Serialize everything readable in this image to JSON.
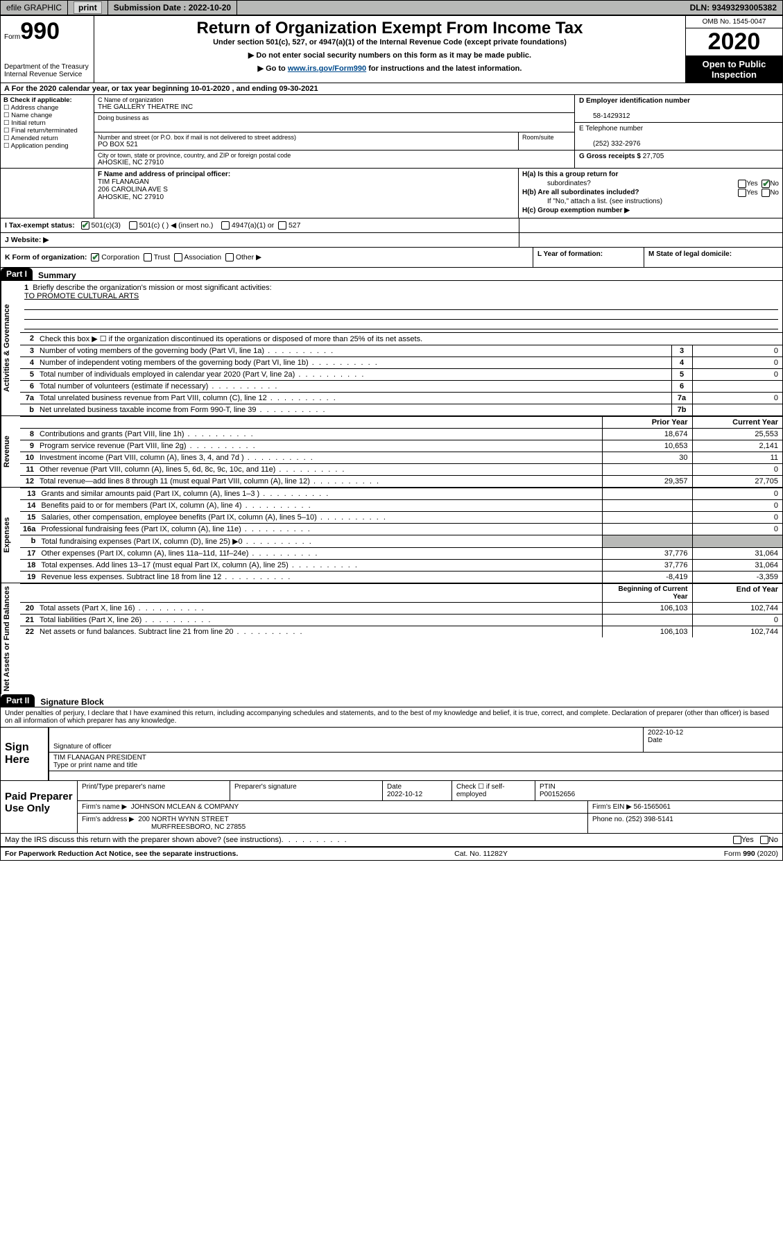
{
  "topbar": {
    "efile_label": "efile GRAPHIC",
    "print_btn": "print",
    "submission_label": "Submission Date : 2022-10-20",
    "dln": "DLN: 93493293005382"
  },
  "header": {
    "form_word": "Form",
    "form_num": "990",
    "dept": "Department of the Treasury\nInternal Revenue Service",
    "title": "Return of Organization Exempt From Income Tax",
    "sub": "Under section 501(c), 527, or 4947(a)(1) of the Internal Revenue Code (except private foundations)",
    "line2": "▶ Do not enter social security numbers on this form as it may be made public.",
    "line3_a": "▶ Go to ",
    "line3_link": "www.irs.gov/Form990",
    "line3_b": " for instructions and the latest information.",
    "omb": "OMB No. 1545-0047",
    "year": "2020",
    "open1": "Open to Public",
    "open2": "Inspection"
  },
  "calline": "A For the 2020 calendar year, or tax year beginning 10-01-2020    , and ending 09-30-2021",
  "boxB": {
    "label": "B Check if applicable:",
    "opts": [
      "Address change",
      "Name change",
      "Initial return",
      "Final return/terminated",
      "Amended return",
      "Application pending"
    ]
  },
  "boxC": {
    "name_label": "C Name of organization",
    "name": "THE GALLERY THEATRE INC",
    "dba_label": "Doing business as",
    "addr_label": "Number and street (or P.O. box if mail is not delivered to street address)",
    "room_label": "Room/suite",
    "addr": "PO BOX 521",
    "city_label": "City or town, state or province, country, and ZIP or foreign postal code",
    "city": "AHOSKIE, NC  27910"
  },
  "boxD": {
    "label": "D Employer identification number",
    "value": "58-1429312"
  },
  "boxE": {
    "label": "E Telephone number",
    "value": "(252) 332-2976"
  },
  "boxG": {
    "label": "G Gross receipts $",
    "value": "27,705"
  },
  "boxF": {
    "label": "F Name and address of principal officer:",
    "name": "TIM FLANAGAN",
    "addr1": "206 CAROLINA AVE S",
    "addr2": "AHOSKIE, NC  27910"
  },
  "boxH": {
    "a": "H(a)  Is this a group return for",
    "a2": "subordinates?",
    "b": "H(b)  Are all subordinates included?",
    "note": "If \"No,\" attach a list. (see instructions)",
    "c": "H(c)  Group exemption number ▶",
    "yes": "Yes",
    "no": "No"
  },
  "boxI": {
    "label": "I   Tax-exempt status:",
    "o1": "501(c)(3)",
    "o2": "501(c) (  ) ◀ (insert no.)",
    "o3": "4947(a)(1) or",
    "o4": "527"
  },
  "boxJ": {
    "label": "J   Website: ▶"
  },
  "boxK": {
    "label": "K Form of organization:",
    "o1": "Corporation",
    "o2": "Trust",
    "o3": "Association",
    "o4": "Other ▶"
  },
  "boxL": {
    "label": "L Year of formation:"
  },
  "boxM": {
    "label": "M State of legal domicile:"
  },
  "partI": {
    "hdr": "Part I",
    "title": "Summary",
    "side1": "Activities & Governance",
    "side2": "Revenue",
    "side3": "Expenses",
    "side4": "Net Assets or Fund Balances",
    "l1": "Briefly describe the organization's mission or most significant activities:",
    "l1v": "TO PROMOTE CULTURAL ARTS",
    "l2": "Check this box ▶ ☐  if the organization discontinued its operations or disposed of more than 25% of its net assets.",
    "rows_gov": [
      {
        "n": "3",
        "t": "Number of voting members of the governing body (Part VI, line 1a)",
        "b": "3",
        "v": "0"
      },
      {
        "n": "4",
        "t": "Number of independent voting members of the governing body (Part VI, line 1b)",
        "b": "4",
        "v": "0"
      },
      {
        "n": "5",
        "t": "Total number of individuals employed in calendar year 2020 (Part V, line 2a)",
        "b": "5",
        "v": "0"
      },
      {
        "n": "6",
        "t": "Total number of volunteers (estimate if necessary)",
        "b": "6",
        "v": ""
      },
      {
        "n": "7a",
        "t": "Total unrelated business revenue from Part VIII, column (C), line 12",
        "b": "7a",
        "v": "0"
      },
      {
        "n": "b",
        "t": "Net unrelated business taxable income from Form 990-T, line 39",
        "b": "7b",
        "v": ""
      }
    ],
    "col_prior": "Prior Year",
    "col_curr": "Current Year",
    "rows_rev": [
      {
        "n": "8",
        "t": "Contributions and grants (Part VIII, line 1h)",
        "p": "18,674",
        "c": "25,553"
      },
      {
        "n": "9",
        "t": "Program service revenue (Part VIII, line 2g)",
        "p": "10,653",
        "c": "2,141"
      },
      {
        "n": "10",
        "t": "Investment income (Part VIII, column (A), lines 3, 4, and 7d )",
        "p": "30",
        "c": "11"
      },
      {
        "n": "11",
        "t": "Other revenue (Part VIII, column (A), lines 5, 6d, 8c, 9c, 10c, and 11e)",
        "p": "",
        "c": "0"
      },
      {
        "n": "12",
        "t": "Total revenue—add lines 8 through 11 (must equal Part VIII, column (A), line 12)",
        "p": "29,357",
        "c": "27,705"
      }
    ],
    "rows_exp": [
      {
        "n": "13",
        "t": "Grants and similar amounts paid (Part IX, column (A), lines 1–3 )",
        "p": "",
        "c": "0"
      },
      {
        "n": "14",
        "t": "Benefits paid to or for members (Part IX, column (A), line 4)",
        "p": "",
        "c": "0"
      },
      {
        "n": "15",
        "t": "Salaries, other compensation, employee benefits (Part IX, column (A), lines 5–10)",
        "p": "",
        "c": "0"
      },
      {
        "n": "16a",
        "t": "Professional fundraising fees (Part IX, column (A), line 11e)",
        "p": "",
        "c": "0"
      },
      {
        "n": "b",
        "t": "Total fundraising expenses (Part IX, column (D), line 25) ▶0",
        "p": "GREY",
        "c": "GREY"
      },
      {
        "n": "17",
        "t": "Other expenses (Part IX, column (A), lines 11a–11d, 11f–24e)",
        "p": "37,776",
        "c": "31,064"
      },
      {
        "n": "18",
        "t": "Total expenses. Add lines 13–17 (must equal Part IX, column (A), line 25)",
        "p": "37,776",
        "c": "31,064"
      },
      {
        "n": "19",
        "t": "Revenue less expenses. Subtract line 18 from line 12",
        "p": "-8,419",
        "c": "-3,359"
      }
    ],
    "col_beg": "Beginning of Current Year",
    "col_end": "End of Year",
    "rows_net": [
      {
        "n": "20",
        "t": "Total assets (Part X, line 16)",
        "p": "106,103",
        "c": "102,744"
      },
      {
        "n": "21",
        "t": "Total liabilities (Part X, line 26)",
        "p": "",
        "c": "0"
      },
      {
        "n": "22",
        "t": "Net assets or fund balances. Subtract line 21 from line 20",
        "p": "106,103",
        "c": "102,744"
      }
    ]
  },
  "partII": {
    "hdr": "Part II",
    "title": "Signature Block",
    "penalties": "Under penalties of perjury, I declare that I have examined this return, including accompanying schedules and statements, and to the best of my knowledge and belief, it is true, correct, and complete. Declaration of preparer (other than officer) is based on all information of which preparer has any knowledge."
  },
  "sign": {
    "left": "Sign Here",
    "sig_label": "Signature of officer",
    "date_label": "Date",
    "date": "2022-10-12",
    "name": "TIM FLANAGAN  PRESIDENT",
    "name_label": "Type or print name and title"
  },
  "paid": {
    "left": "Paid Preparer Use Only",
    "r1": {
      "c1l": "Print/Type preparer's name",
      "c1": "",
      "c2l": "Preparer's signature",
      "c2": "",
      "c3l": "Date",
      "c3": "2022-10-12",
      "c4l": "Check ☐ if self-employed",
      "c5l": "PTIN",
      "c5": "P00152656"
    },
    "r2": {
      "l": "Firm's name    ▶",
      "v": "JOHNSON MCLEAN & COMPANY",
      "einl": "Firm's EIN ▶",
      "ein": "56-1565061"
    },
    "r3": {
      "l": "Firm's address ▶",
      "v1": "200 NORTH WYNN STREET",
      "v2": "MURFREESBORO, NC  27855",
      "phl": "Phone no.",
      "ph": "(252) 398-5141"
    }
  },
  "discuss": {
    "q": "May the IRS discuss this return with the preparer shown above? (see instructions)",
    "yes": "Yes",
    "no": "No"
  },
  "footer": {
    "left": "For Paperwork Reduction Act Notice, see the separate instructions.",
    "mid": "Cat. No. 11282Y",
    "right": "Form 990 (2020)"
  }
}
